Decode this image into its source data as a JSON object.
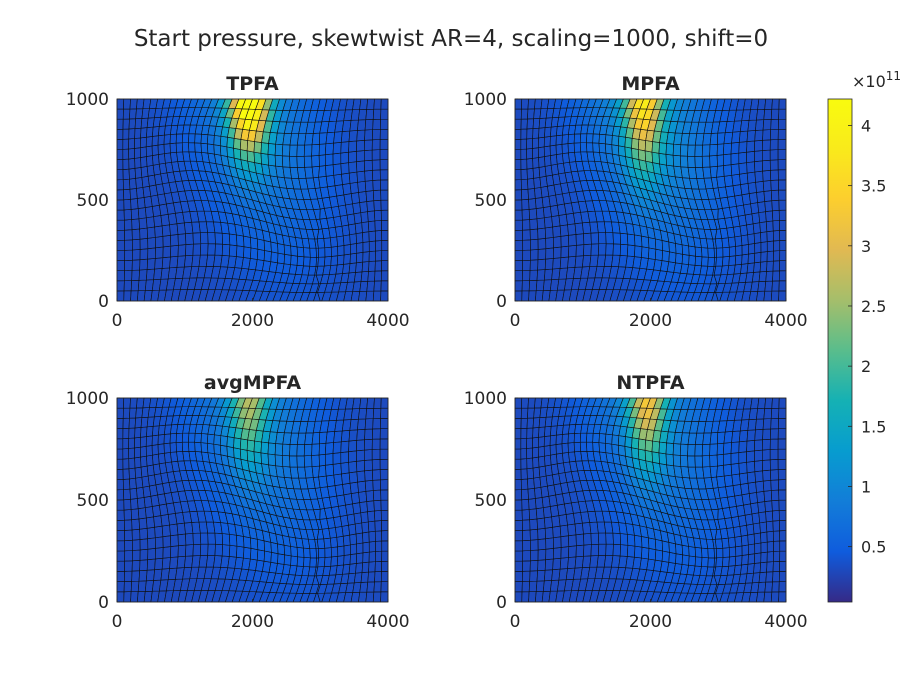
{
  "figure": {
    "title": "Start pressure, skewtwist AR=4, scaling=1000, shift=0"
  },
  "colorbar": {
    "exponent_label": "×10",
    "exponent_power": "11",
    "ticks": [
      0.5,
      1,
      1.5,
      2,
      2.5,
      3,
      3.5,
      4
    ],
    "tick_labels": [
      "0.5",
      "1",
      "1.5",
      "2",
      "2.5",
      "3",
      "3.5",
      "4"
    ],
    "range": [
      0.04,
      4.22
    ],
    "colormap": "parula"
  },
  "chart_data": [
    {
      "type": "heatmap",
      "title": "TPFA",
      "xlim": [
        0,
        4000
      ],
      "ylim": [
        0,
        1000
      ],
      "xticks": [
        0,
        2000,
        4000
      ],
      "yticks": [
        0,
        500,
        1000
      ],
      "xtick_labels": [
        "0",
        "2000",
        "4000"
      ],
      "ytick_labels": [
        "0",
        "500",
        "1000"
      ],
      "grid_cells": [
        40,
        20
      ],
      "background_value": 0.3,
      "hotspot": {
        "x": 1950,
        "y": 1000,
        "peak": 4.22,
        "decay_x": 280,
        "decay_y": 260
      },
      "warm_band_value": 0.7
    },
    {
      "type": "heatmap",
      "title": "MPFA",
      "xlim": [
        0,
        4000
      ],
      "ylim": [
        0,
        1000
      ],
      "xticks": [
        0,
        2000,
        4000
      ],
      "yticks": [
        0,
        500,
        1000
      ],
      "xtick_labels": [
        "0",
        "2000",
        "4000"
      ],
      "ytick_labels": [
        "0",
        "500",
        "1000"
      ],
      "grid_cells": [
        40,
        20
      ],
      "background_value": 0.3,
      "hotspot": {
        "x": 1900,
        "y": 1000,
        "peak": 3.0,
        "decay_x": 260,
        "decay_y": 320
      },
      "warm_band_value": 0.9
    },
    {
      "type": "heatmap",
      "title": "avgMPFA",
      "xlim": [
        0,
        4000
      ],
      "ylim": [
        0,
        1000
      ],
      "xticks": [
        0,
        2000,
        4000
      ],
      "yticks": [
        0,
        500,
        1000
      ],
      "xtick_labels": [
        "0",
        "2000",
        "4000"
      ],
      "ytick_labels": [
        "0",
        "500",
        "1000"
      ],
      "grid_cells": [
        40,
        20
      ],
      "background_value": 0.3,
      "hotspot": {
        "x": 1950,
        "y": 1000,
        "peak": 2.0,
        "decay_x": 260,
        "decay_y": 300
      },
      "warm_band_value": 0.7
    },
    {
      "type": "heatmap",
      "title": "NTPFA",
      "xlim": [
        0,
        4000
      ],
      "ylim": [
        0,
        1000
      ],
      "xticks": [
        0,
        2000,
        4000
      ],
      "yticks": [
        0,
        500,
        1000
      ],
      "xtick_labels": [
        "0",
        "2000",
        "4000"
      ],
      "ytick_labels": [
        "0",
        "500",
        "1000"
      ],
      "grid_cells": [
        40,
        20
      ],
      "background_value": 0.3,
      "hotspot": {
        "x": 1950,
        "y": 1000,
        "peak": 2.6,
        "decay_x": 260,
        "decay_y": 300
      },
      "warm_band_value": 0.7
    }
  ]
}
